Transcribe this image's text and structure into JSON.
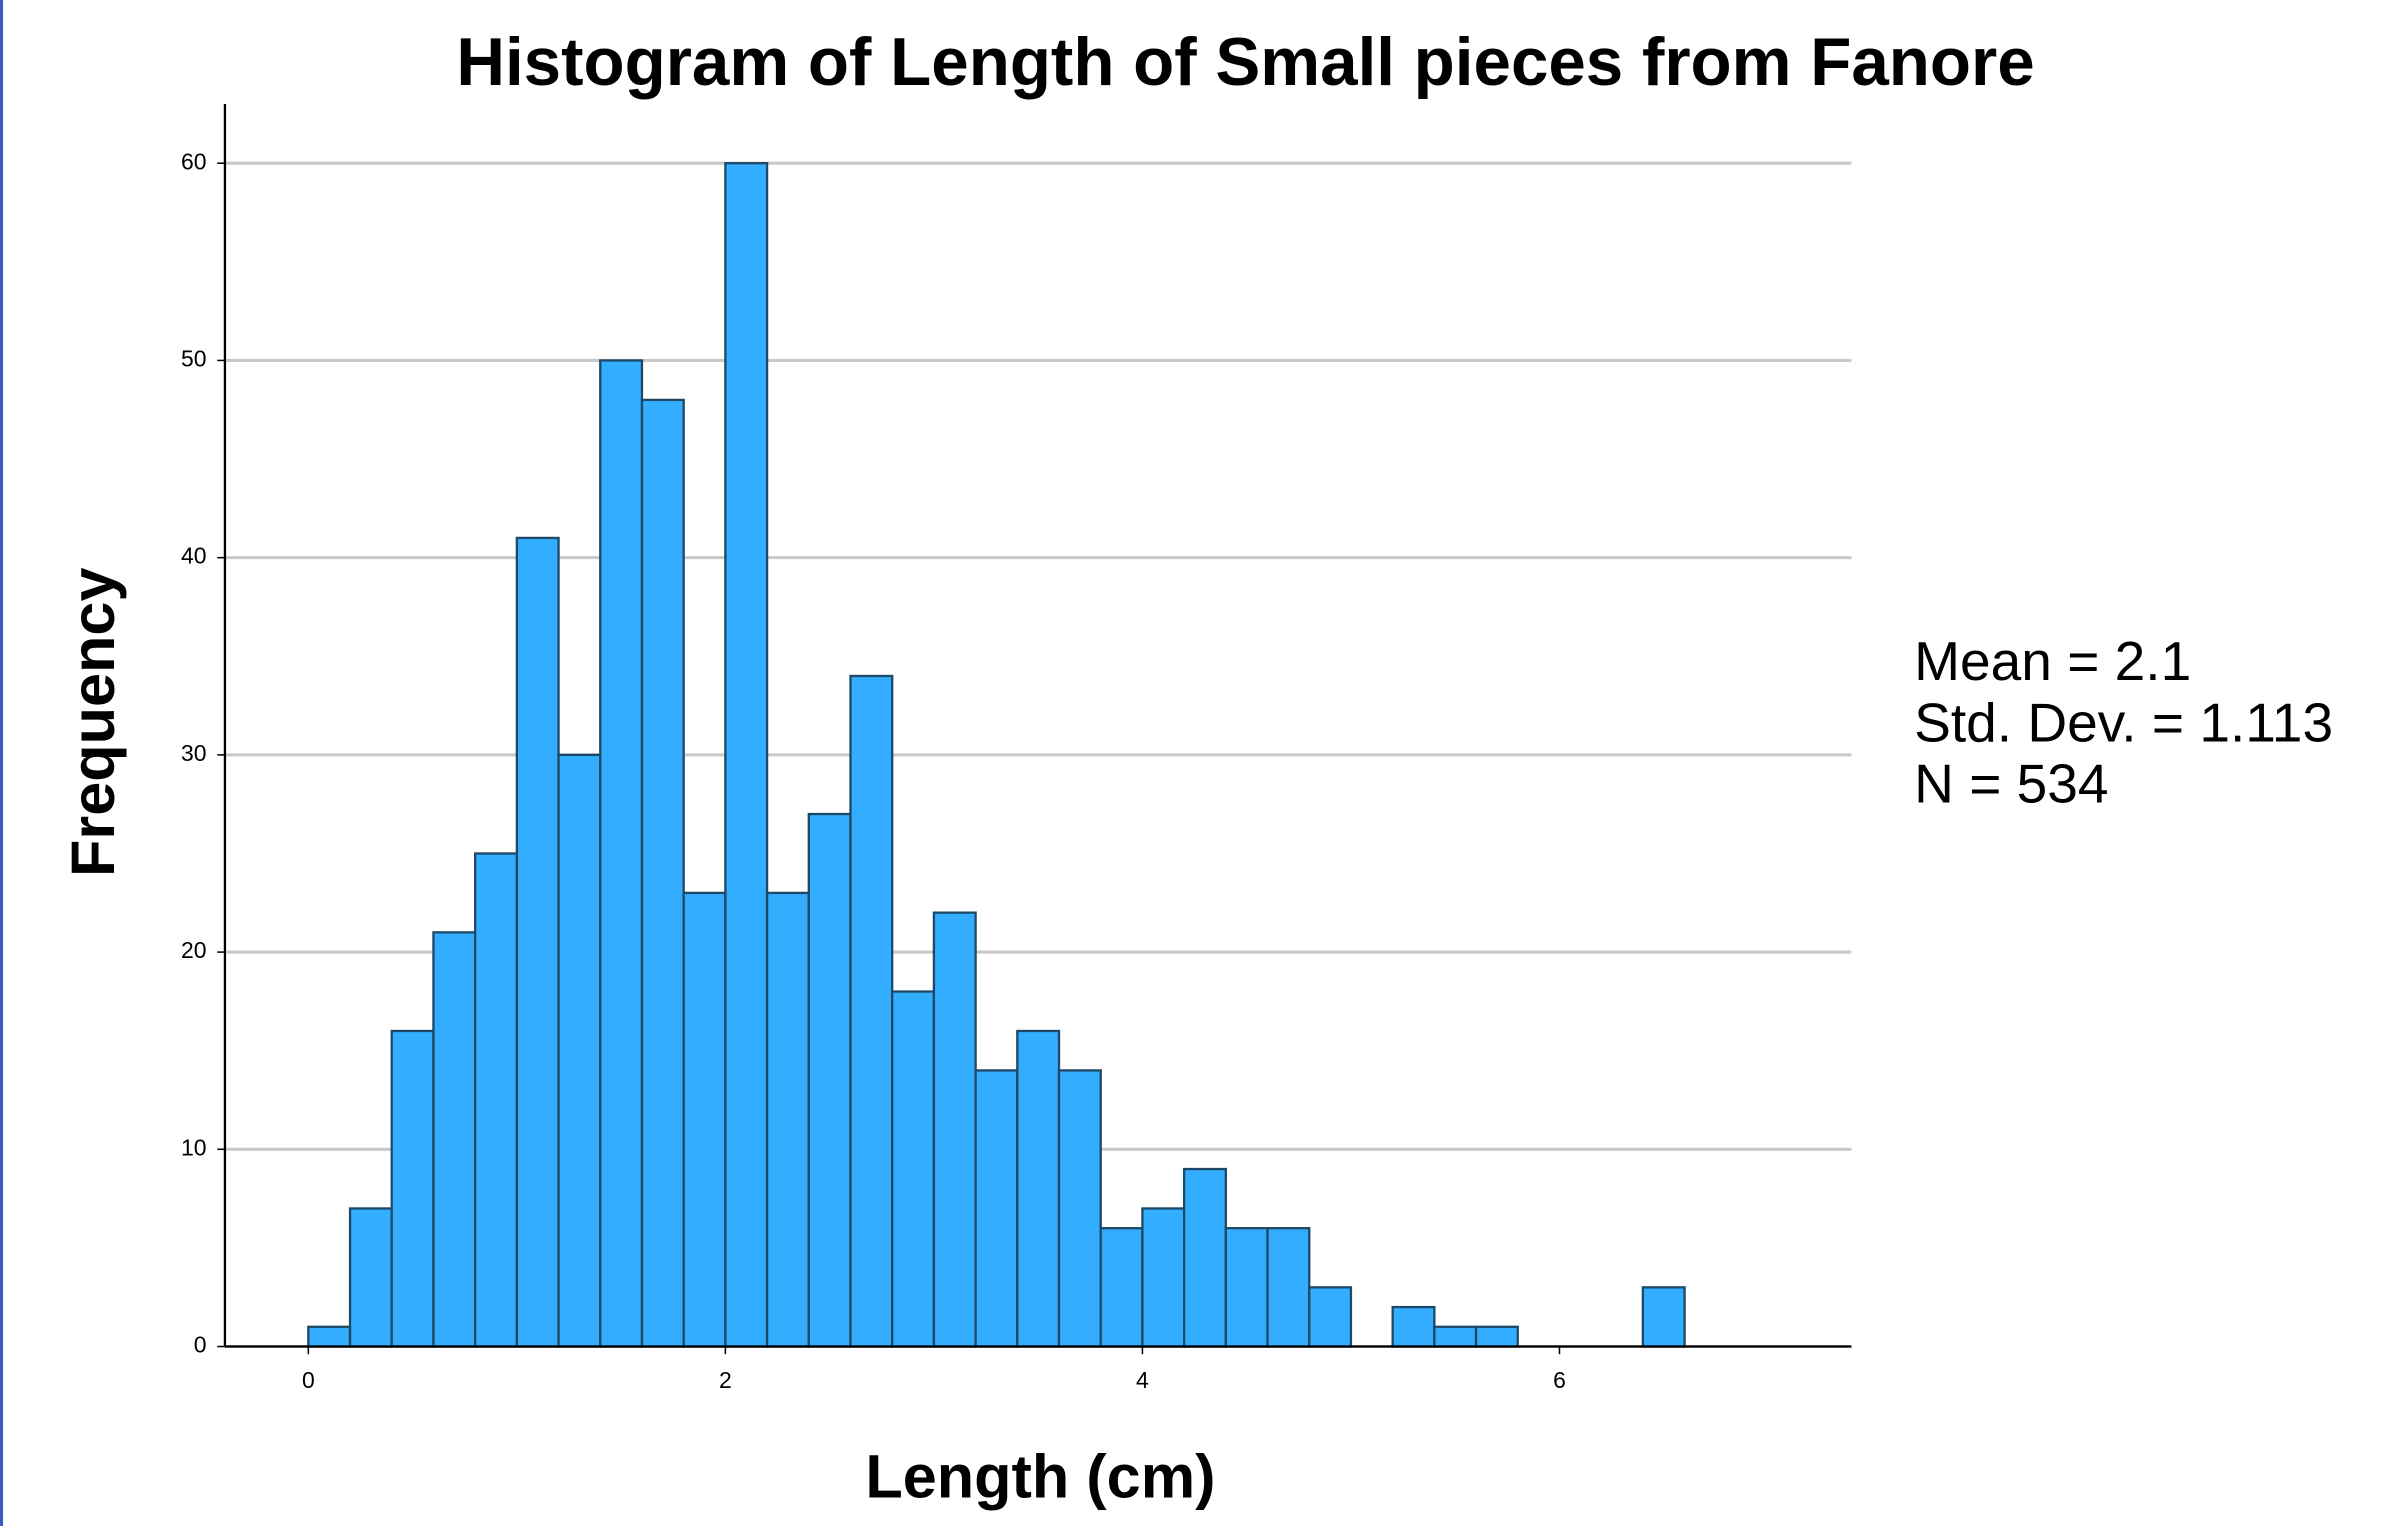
{
  "chart_data": {
    "type": "histogram",
    "title": "Histogram of Length of Small pieces from Fanore",
    "xlabel": "Length (cm)",
    "ylabel": "Frequency",
    "bins": [
      0,
      0.2,
      0.4,
      0.6,
      0.8,
      1.0,
      1.2,
      1.4,
      1.6,
      1.8,
      2.0,
      2.2,
      2.4,
      2.6,
      2.8,
      3.0,
      3.2,
      3.4,
      3.6,
      3.8,
      4.0,
      4.2,
      4.4,
      4.6,
      4.8,
      5.0,
      5.2,
      5.4,
      5.6,
      5.8,
      6.0,
      6.2,
      6.4,
      6.6
    ],
    "counts": [
      1,
      7,
      16,
      21,
      25,
      41,
      30,
      50,
      48,
      23,
      60,
      23,
      27,
      34,
      18,
      22,
      14,
      16,
      14,
      6,
      7,
      9,
      6,
      6,
      3,
      0,
      2,
      1,
      1,
      0,
      0,
      0,
      3
    ],
    "color": "#33adff",
    "xlim": [
      -0.4,
      7.4
    ],
    "xticks": [
      0,
      2,
      4,
      6
    ],
    "ylim": [
      0,
      63
    ],
    "yticks": [
      0,
      10,
      20,
      30,
      40,
      50,
      60
    ],
    "grid": true,
    "stats": [
      "Mean = 2.1",
      "Std. Dev. = 1.113",
      "N = 534"
    ]
  }
}
